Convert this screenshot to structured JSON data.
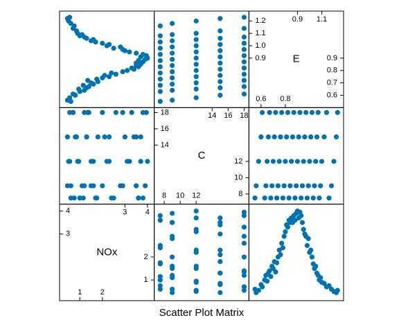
{
  "chart_data": {
    "type": "splom",
    "title": "Scatter Plot Matrix",
    "color": "#0072b2",
    "variables": [
      {
        "name": "NOx",
        "lim": [
          0.1,
          4.3
        ],
        "x_ticks_low": [
          1,
          2
        ],
        "x_ticks_high": [
          3,
          4
        ],
        "y_ticks_low": [
          1,
          2
        ],
        "y_ticks_high": [
          3,
          4
        ],
        "values": [
          0.6,
          0.45,
          0.55,
          0.8,
          0.7,
          1.0,
          1.2,
          0.95,
          1.3,
          1.4,
          1.15,
          1.6,
          1.5,
          1.8,
          1.35,
          1.75,
          2.0,
          2.3,
          2.1,
          2.6,
          2.4,
          2.9,
          3.1,
          3.4,
          3.3,
          3.6,
          3.5,
          3.7,
          3.5,
          3.8,
          3.6,
          3.9,
          4.0,
          3.7,
          3.95,
          3.8,
          3.5,
          3.2,
          3.0,
          2.9,
          2.5,
          2.8,
          2.2,
          2.3,
          2.0,
          1.7,
          1.5,
          1.6,
          1.3,
          1.2,
          1.0,
          1.1,
          0.9,
          0.85,
          0.7,
          0.75,
          0.6,
          0.5,
          0.45,
          0.55
        ]
      },
      {
        "name": "C",
        "lim": [
          6.75,
          18.6
        ],
        "x_ticks_low": [
          8,
          10,
          12
        ],
        "x_ticks_high": [
          14,
          16,
          18
        ],
        "y_ticks_low": [
          8,
          10,
          12
        ],
        "y_ticks_high": [
          14,
          16,
          18
        ],
        "values": [
          7.5,
          9,
          12,
          15,
          18,
          7.5,
          9,
          12,
          15,
          18,
          7.5,
          9,
          12,
          15,
          18,
          7.5,
          9,
          12,
          15,
          18,
          7.5,
          9,
          12,
          15,
          18,
          7.5,
          9,
          12,
          15,
          18,
          7.5,
          9,
          12,
          15,
          18,
          7.5,
          9,
          12,
          15,
          18,
          7.5,
          9,
          12,
          15,
          18,
          7.5,
          9,
          12,
          15,
          18,
          7.5,
          9,
          12,
          15,
          18,
          7.5,
          9,
          12,
          15,
          18
        ]
      },
      {
        "name": "E",
        "lim": [
          0.5,
          1.28
        ],
        "x_ticks_low": [
          0.6,
          0.8
        ],
        "x_ticks_high": [
          0.9,
          1.1
        ],
        "y_ticks_low": [
          0.6,
          0.7,
          0.8,
          0.9
        ],
        "y_ticks_high": [
          0.9,
          {
            "value": 1,
            "label": "1.0"
          },
          1.1,
          1.2
        ],
        "values": [
          0.55,
          0.56,
          0.58,
          0.6,
          0.61,
          0.63,
          0.64,
          0.65,
          0.66,
          0.67,
          0.68,
          0.69,
          0.7,
          0.71,
          0.72,
          0.73,
          0.74,
          0.75,
          0.76,
          0.77,
          0.78,
          0.79,
          0.8,
          0.81,
          0.82,
          0.83,
          0.84,
          0.85,
          0.86,
          0.87,
          0.88,
          0.89,
          0.9,
          0.91,
          0.92,
          0.93,
          0.94,
          0.95,
          0.96,
          0.97,
          0.98,
          0.99,
          1.0,
          1.01,
          1.02,
          1.03,
          1.04,
          1.05,
          1.06,
          1.07,
          1.08,
          1.09,
          1.1,
          1.12,
          1.14,
          1.16,
          1.18,
          1.2,
          1.22,
          1.23
        ]
      }
    ]
  }
}
